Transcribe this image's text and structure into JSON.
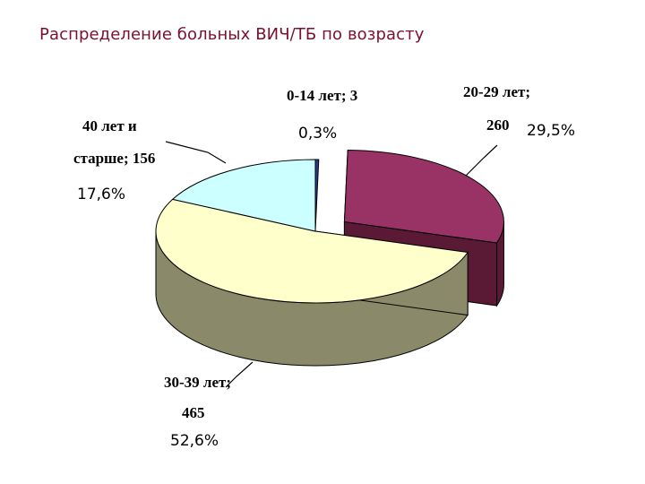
{
  "title": "Распределение больных ВИЧ/ТБ по возрасту",
  "chart_data": {
    "type": "pie",
    "title": "Распределение больных ВИЧ/ТБ по возрасту",
    "slices": [
      {
        "category": "0-14 лет",
        "label_lines": [
          "0-14 лет; 3"
        ],
        "value": 3,
        "percent_label": "0,3%",
        "percent": 0.3,
        "color": "#2b3a8c",
        "side_color": "#1c2560"
      },
      {
        "category": "20-29 лет",
        "label_lines": [
          "20-29 лет;",
          "260"
        ],
        "value": 260,
        "percent_label": "29,5%",
        "percent": 29.5,
        "color": "#993366",
        "side_color": "#5a1a35",
        "exploded": true
      },
      {
        "category": "30-39 лет",
        "label_lines": [
          "30-39 лет;",
          "465"
        ],
        "value": 465,
        "percent_label": "52,6%",
        "percent": 52.6,
        "color": "#ffffcc",
        "side_color": "#8a8a6a"
      },
      {
        "category": "40 лет и старше",
        "label_lines": [
          "40 лет и",
          "старше; 156"
        ],
        "value": 156,
        "percent_label": "17,6%",
        "percent": 17.6,
        "color": "#ccffff",
        "side_color": "#6e8a8a"
      }
    ],
    "style": "3d-exploded-pie"
  }
}
